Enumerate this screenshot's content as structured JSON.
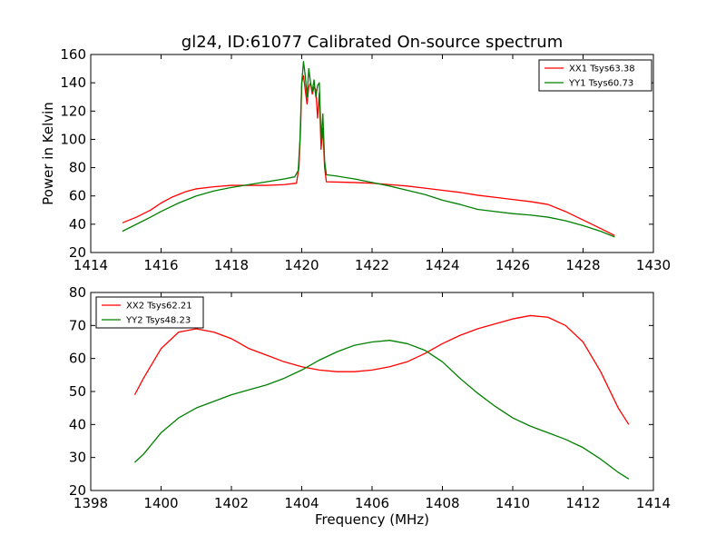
{
  "title": "gl24, ID:61077 Calibrated On-source spectrum",
  "chart_data": [
    {
      "type": "line",
      "ylabel": "Power in Kelvin",
      "xlabel": "",
      "xlim": [
        1414,
        1430
      ],
      "ylim": [
        20,
        160
      ],
      "xticks": [
        1414,
        1416,
        1418,
        1420,
        1422,
        1424,
        1426,
        1428,
        1430
      ],
      "yticks": [
        20,
        40,
        60,
        80,
        100,
        120,
        140,
        160
      ],
      "legend_position": "top-right",
      "series": [
        {
          "name": "XX1 Tsys63.38",
          "color": "#ff0000",
          "points": [
            [
              1414.9,
              41
            ],
            [
              1415.3,
              45
            ],
            [
              1415.7,
              50
            ],
            [
              1416.0,
              55
            ],
            [
              1416.3,
              59
            ],
            [
              1416.7,
              63
            ],
            [
              1417.0,
              65
            ],
            [
              1417.5,
              66.5
            ],
            [
              1418.0,
              67.5
            ],
            [
              1418.5,
              67.5
            ],
            [
              1419.0,
              67.5
            ],
            [
              1419.5,
              68
            ],
            [
              1419.85,
              69
            ],
            [
              1419.92,
              80
            ],
            [
              1419.97,
              110
            ],
            [
              1420.0,
              140
            ],
            [
              1420.05,
              145
            ],
            [
              1420.1,
              135
            ],
            [
              1420.15,
              125
            ],
            [
              1420.2,
              137
            ],
            [
              1420.25,
              140
            ],
            [
              1420.3,
              132
            ],
            [
              1420.35,
              137
            ],
            [
              1420.4,
              135
            ],
            [
              1420.45,
              115
            ],
            [
              1420.5,
              133
            ],
            [
              1420.55,
              93
            ],
            [
              1420.6,
              108
            ],
            [
              1420.65,
              80
            ],
            [
              1420.7,
              70
            ],
            [
              1421.0,
              69.8
            ],
            [
              1421.5,
              69.5
            ],
            [
              1422.0,
              69
            ],
            [
              1422.5,
              68
            ],
            [
              1423.0,
              67
            ],
            [
              1423.5,
              65.5
            ],
            [
              1424.0,
              64
            ],
            [
              1424.5,
              62.5
            ],
            [
              1425.0,
              60.5
            ],
            [
              1425.5,
              59
            ],
            [
              1426.0,
              57.5
            ],
            [
              1426.5,
              56
            ],
            [
              1427.0,
              54
            ],
            [
              1427.5,
              49
            ],
            [
              1428.0,
              43
            ],
            [
              1428.5,
              37
            ],
            [
              1428.9,
              32
            ]
          ]
        },
        {
          "name": "YY1 Tsys60.73",
          "color": "#008000",
          "points": [
            [
              1414.9,
              35
            ],
            [
              1415.3,
              40
            ],
            [
              1415.7,
              45
            ],
            [
              1416.0,
              49
            ],
            [
              1416.5,
              55
            ],
            [
              1417.0,
              60
            ],
            [
              1417.5,
              63.5
            ],
            [
              1418.0,
              66
            ],
            [
              1418.5,
              68
            ],
            [
              1419.0,
              70
            ],
            [
              1419.5,
              72
            ],
            [
              1419.8,
              73.5
            ],
            [
              1419.9,
              78
            ],
            [
              1419.95,
              100
            ],
            [
              1420.0,
              140
            ],
            [
              1420.05,
              155
            ],
            [
              1420.1,
              145
            ],
            [
              1420.15,
              130
            ],
            [
              1420.2,
              150
            ],
            [
              1420.25,
              140
            ],
            [
              1420.3,
              134
            ],
            [
              1420.35,
              142
            ],
            [
              1420.4,
              130
            ],
            [
              1420.45,
              138
            ],
            [
              1420.5,
              140
            ],
            [
              1420.55,
              100
            ],
            [
              1420.6,
              118
            ],
            [
              1420.65,
              85
            ],
            [
              1420.7,
              75
            ],
            [
              1421.0,
              74
            ],
            [
              1421.5,
              72
            ],
            [
              1422.0,
              69.5
            ],
            [
              1422.5,
              67
            ],
            [
              1423.0,
              64
            ],
            [
              1423.5,
              61
            ],
            [
              1424.0,
              57
            ],
            [
              1424.5,
              54
            ],
            [
              1425.0,
              50.5
            ],
            [
              1425.5,
              49
            ],
            [
              1426.0,
              47.5
            ],
            [
              1426.5,
              46.5
            ],
            [
              1427.0,
              45
            ],
            [
              1427.5,
              42.5
            ],
            [
              1428.0,
              39
            ],
            [
              1428.5,
              35
            ],
            [
              1428.9,
              31
            ]
          ]
        }
      ]
    },
    {
      "type": "line",
      "ylabel": "",
      "xlabel": "Frequency (MHz)",
      "xlim": [
        1398,
        1414
      ],
      "ylim": [
        20,
        80
      ],
      "xticks": [
        1398,
        1400,
        1402,
        1404,
        1406,
        1408,
        1410,
        1412,
        1414
      ],
      "yticks": [
        20,
        30,
        40,
        50,
        60,
        70,
        80
      ],
      "legend_position": "top-left",
      "series": [
        {
          "name": "XX2 Tsys62.21",
          "color": "#ff0000",
          "points": [
            [
              1399.25,
              49
            ],
            [
              1399.5,
              54
            ],
            [
              1400.0,
              63
            ],
            [
              1400.5,
              68
            ],
            [
              1401.0,
              69
            ],
            [
              1401.5,
              68
            ],
            [
              1402.0,
              66
            ],
            [
              1402.5,
              63
            ],
            [
              1403.0,
              61
            ],
            [
              1403.5,
              59
            ],
            [
              1404.0,
              57.5
            ],
            [
              1404.5,
              56.5
            ],
            [
              1405.0,
              56
            ],
            [
              1405.5,
              56
            ],
            [
              1406.0,
              56.5
            ],
            [
              1406.5,
              57.5
            ],
            [
              1407.0,
              59
            ],
            [
              1407.5,
              61.5
            ],
            [
              1408.0,
              64.5
            ],
            [
              1408.5,
              67
            ],
            [
              1409.0,
              69
            ],
            [
              1409.5,
              70.5
            ],
            [
              1410.0,
              72
            ],
            [
              1410.5,
              73
            ],
            [
              1411.0,
              72.5
            ],
            [
              1411.5,
              70
            ],
            [
              1412.0,
              65
            ],
            [
              1412.5,
              56
            ],
            [
              1413.0,
              45
            ],
            [
              1413.3,
              40
            ]
          ]
        },
        {
          "name": "YY2 Tsys48.23",
          "color": "#008000",
          "points": [
            [
              1399.25,
              28.5
            ],
            [
              1399.5,
              31
            ],
            [
              1400.0,
              37.5
            ],
            [
              1400.5,
              42
            ],
            [
              1401.0,
              45
            ],
            [
              1401.5,
              47
            ],
            [
              1402.0,
              49
            ],
            [
              1402.5,
              50.5
            ],
            [
              1403.0,
              52
            ],
            [
              1403.5,
              54
            ],
            [
              1404.0,
              56.5
            ],
            [
              1404.5,
              59.5
            ],
            [
              1405.0,
              62
            ],
            [
              1405.5,
              64
            ],
            [
              1406.0,
              65
            ],
            [
              1406.5,
              65.5
            ],
            [
              1407.0,
              64.5
            ],
            [
              1407.5,
              62.5
            ],
            [
              1408.0,
              59
            ],
            [
              1408.5,
              54
            ],
            [
              1409.0,
              49.5
            ],
            [
              1409.5,
              45.5
            ],
            [
              1410.0,
              42
            ],
            [
              1410.5,
              39.5
            ],
            [
              1411.0,
              37.5
            ],
            [
              1411.5,
              35.5
            ],
            [
              1412.0,
              33
            ],
            [
              1412.5,
              29.5
            ],
            [
              1413.0,
              25.5
            ],
            [
              1413.3,
              23.5
            ]
          ]
        }
      ]
    }
  ]
}
